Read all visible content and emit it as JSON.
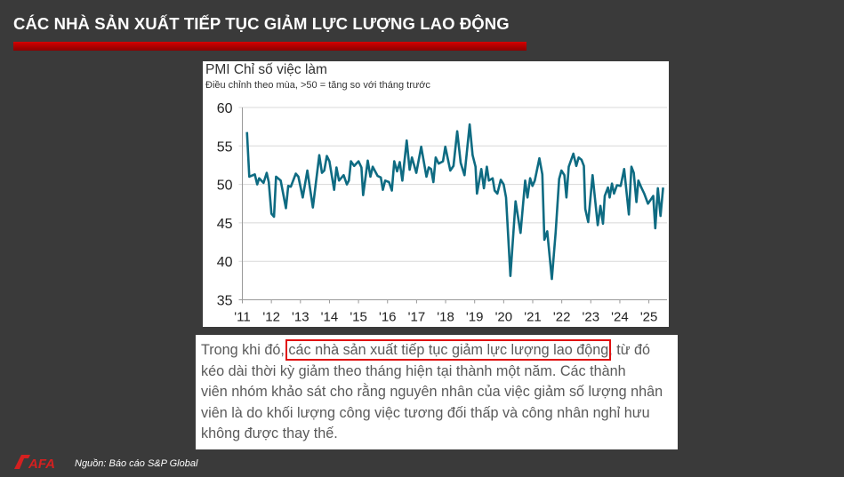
{
  "slide": {
    "title": "CÁC NHÀ SẢN XUẤT TIẾP TỤC GIẢM LỰC LƯỢNG LAO ĐỘNG",
    "source": "Nguồn: Báo cáo S&P Global",
    "logo_text": "SAFA",
    "accent_color": "#c00000"
  },
  "paragraph": {
    "line1_pre": "Trong khi đó, ",
    "line1_highlight": "các nhà sản xuất tiếp tục giảm lực lượng lao động",
    "line1_post": ", từ đó",
    "line2": "kéo dài thời kỳ giảm theo tháng hiện tại thành một năm. Các thành",
    "line3": "viên nhóm khảo sát cho rằng nguyên nhân của việc giảm số lượng nhân",
    "line4": "viên là do khối lượng công việc tương đối thấp và công nhân nghỉ hưu",
    "line5": "không được thay thế."
  },
  "chart_data": {
    "type": "line",
    "title": "PMI Chỉ số việc làm",
    "subtitle": "Điều chỉnh theo mùa, >50 = tăng so với tháng trước",
    "xlabel": "",
    "ylabel": "",
    "ylim": [
      35,
      60
    ],
    "xlim": [
      2011,
      2025.6
    ],
    "yticks": [
      35,
      40,
      45,
      50,
      55,
      60
    ],
    "xticks": [
      {
        "v": 2011,
        "label": "'11"
      },
      {
        "v": 2012,
        "label": "'12"
      },
      {
        "v": 2013,
        "label": "'13"
      },
      {
        "v": 2014,
        "label": "'14"
      },
      {
        "v": 2015,
        "label": "'15"
      },
      {
        "v": 2016,
        "label": "'16"
      },
      {
        "v": 2017,
        "label": "'17"
      },
      {
        "v": 2018,
        "label": "'18"
      },
      {
        "v": 2019,
        "label": "'19"
      },
      {
        "v": 2020,
        "label": "'20"
      },
      {
        "v": 2021,
        "label": "'21"
      },
      {
        "v": 2022,
        "label": "'22"
      },
      {
        "v": 2023,
        "label": "'23"
      },
      {
        "v": 2024,
        "label": "'24"
      },
      {
        "v": 2025,
        "label": "'25"
      }
    ],
    "grid": true,
    "line_color": "#0e6b82",
    "series": [
      {
        "name": "PMI Chỉ số việc làm",
        "points": [
          [
            2011.16,
            56.8
          ],
          [
            2011.24,
            51.0
          ],
          [
            2011.43,
            51.3
          ],
          [
            2011.51,
            50.0
          ],
          [
            2011.58,
            50.8
          ],
          [
            2011.73,
            50.2
          ],
          [
            2011.84,
            51.5
          ],
          [
            2011.91,
            50.3
          ],
          [
            2012.0,
            46.2
          ],
          [
            2012.09,
            45.8
          ],
          [
            2012.16,
            51.0
          ],
          [
            2012.32,
            50.5
          ],
          [
            2012.5,
            46.9
          ],
          [
            2012.58,
            49.8
          ],
          [
            2012.67,
            49.7
          ],
          [
            2012.84,
            51.4
          ],
          [
            2012.93,
            51.0
          ],
          [
            2013.08,
            48.3
          ],
          [
            2013.24,
            51.8
          ],
          [
            2013.43,
            47.0
          ],
          [
            2013.65,
            53.8
          ],
          [
            2013.74,
            51.5
          ],
          [
            2013.82,
            51.8
          ],
          [
            2013.91,
            53.7
          ],
          [
            2014.0,
            53.0
          ],
          [
            2014.16,
            49.3
          ],
          [
            2014.24,
            52.2
          ],
          [
            2014.33,
            50.5
          ],
          [
            2014.49,
            51.2
          ],
          [
            2014.6,
            50.0
          ],
          [
            2014.67,
            50.5
          ],
          [
            2014.74,
            53.0
          ],
          [
            2014.85,
            52.4
          ],
          [
            2015.0,
            53.0
          ],
          [
            2015.1,
            52.2
          ],
          [
            2015.16,
            48.6
          ],
          [
            2015.32,
            53.1
          ],
          [
            2015.41,
            51.0
          ],
          [
            2015.49,
            52.3
          ],
          [
            2015.66,
            51.1
          ],
          [
            2015.77,
            50.9
          ],
          [
            2015.84,
            49.3
          ],
          [
            2015.92,
            50.5
          ],
          [
            2016.05,
            50.3
          ],
          [
            2016.15,
            49.2
          ],
          [
            2016.23,
            53.0
          ],
          [
            2016.33,
            51.7
          ],
          [
            2016.42,
            52.9
          ],
          [
            2016.51,
            50.5
          ],
          [
            2016.66,
            55.7
          ],
          [
            2016.76,
            51.9
          ],
          [
            2016.84,
            53.5
          ],
          [
            2016.99,
            51.5
          ],
          [
            2017.16,
            54.9
          ],
          [
            2017.34,
            51.0
          ],
          [
            2017.42,
            52.2
          ],
          [
            2017.5,
            52.0
          ],
          [
            2017.58,
            50.3
          ],
          [
            2017.66,
            53.5
          ],
          [
            2017.76,
            52.7
          ],
          [
            2017.91,
            53.0
          ],
          [
            2017.99,
            54.9
          ],
          [
            2018.16,
            51.8
          ],
          [
            2018.27,
            52.4
          ],
          [
            2018.4,
            56.9
          ],
          [
            2018.52,
            52.8
          ],
          [
            2018.65,
            51.2
          ],
          [
            2018.83,
            57.8
          ],
          [
            2018.93,
            53.8
          ],
          [
            2019.03,
            52.3
          ],
          [
            2019.08,
            48.8
          ],
          [
            2019.23,
            52.0
          ],
          [
            2019.32,
            49.5
          ],
          [
            2019.42,
            52.3
          ],
          [
            2019.49,
            50.5
          ],
          [
            2019.62,
            50.8
          ],
          [
            2019.69,
            49.2
          ],
          [
            2019.78,
            48.8
          ],
          [
            2019.9,
            50.6
          ],
          [
            2020.0,
            50.0
          ],
          [
            2020.08,
            48.3
          ],
          [
            2020.23,
            38.1
          ],
          [
            2020.41,
            47.8
          ],
          [
            2020.58,
            43.7
          ],
          [
            2020.74,
            50.5
          ],
          [
            2020.82,
            48.3
          ],
          [
            2020.91,
            50.8
          ],
          [
            2020.99,
            49.8
          ],
          [
            2021.07,
            50.5
          ],
          [
            2021.23,
            53.4
          ],
          [
            2021.33,
            51.3
          ],
          [
            2021.4,
            42.8
          ],
          [
            2021.5,
            43.9
          ],
          [
            2021.66,
            37.7
          ],
          [
            2021.79,
            43.8
          ],
          [
            2021.91,
            50.7
          ],
          [
            2021.99,
            51.8
          ],
          [
            2022.09,
            51.2
          ],
          [
            2022.16,
            48.3
          ],
          [
            2022.24,
            52.3
          ],
          [
            2022.4,
            54.0
          ],
          [
            2022.5,
            52.4
          ],
          [
            2022.58,
            53.5
          ],
          [
            2022.68,
            53.2
          ],
          [
            2022.76,
            52.4
          ],
          [
            2022.81,
            46.8
          ],
          [
            2022.91,
            45.1
          ],
          [
            2023.06,
            51.2
          ],
          [
            2023.24,
            44.7
          ],
          [
            2023.33,
            47.2
          ],
          [
            2023.42,
            44.9
          ],
          [
            2023.48,
            48.5
          ],
          [
            2023.59,
            49.6
          ],
          [
            2023.65,
            48.3
          ],
          [
            2023.73,
            50.1
          ],
          [
            2023.8,
            48.8
          ],
          [
            2023.9,
            49.9
          ],
          [
            2024.03,
            49.8
          ],
          [
            2024.15,
            52.0
          ],
          [
            2024.31,
            46.1
          ],
          [
            2024.4,
            52.3
          ],
          [
            2024.48,
            51.5
          ],
          [
            2024.57,
            47.7
          ],
          [
            2024.64,
            50.5
          ],
          [
            2024.74,
            49.6
          ],
          [
            2024.84,
            48.8
          ],
          [
            2024.97,
            47.5
          ],
          [
            2025.15,
            48.5
          ],
          [
            2025.22,
            44.3
          ],
          [
            2025.31,
            49.5
          ],
          [
            2025.4,
            45.9
          ],
          [
            2025.49,
            49.6
          ]
        ]
      }
    ]
  }
}
